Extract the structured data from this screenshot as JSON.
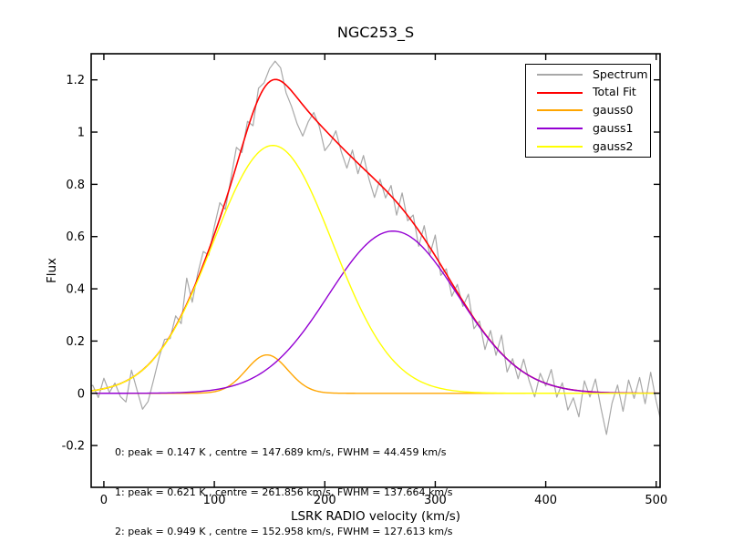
{
  "chart_data": {
    "type": "line",
    "title": "NGC253_S",
    "xlabel": "LSRK RADIO velocity (km/s)",
    "ylabel": "Flux",
    "xlim": [
      -11.5,
      503.5
    ],
    "ylim": [
      -0.36,
      1.3
    ],
    "xticks": {
      "values": [
        0,
        100,
        200,
        300,
        400,
        500
      ],
      "labels": [
        "0",
        "100",
        "200",
        "300",
        "400",
        "500"
      ]
    },
    "yticks": {
      "values": [
        -0.2,
        0,
        0.2,
        0.4,
        0.6,
        0.8,
        1,
        1.2
      ],
      "labels": [
        "-0.2",
        "0",
        "0.2",
        "0.4",
        "0.6",
        "0.8",
        "1",
        "1.2"
      ]
    },
    "grid": false,
    "axis_color": "#000000",
    "background": "#ffffff",
    "gaussians": [
      {
        "name": "gauss0",
        "peak": 0.147,
        "centre": 147.689,
        "fwhm": 44.459,
        "color": "#ffa500"
      },
      {
        "name": "gauss1",
        "peak": 0.621,
        "centre": 261.856,
        "fwhm": 137.664,
        "color": "#9400d3"
      },
      {
        "name": "gauss2",
        "peak": 0.949,
        "centre": 152.958,
        "fwhm": 127.613,
        "color": "#ffff00"
      }
    ],
    "total_fit": {
      "name": "Total Fit",
      "color": "#ff0000"
    },
    "spectrum": {
      "name": "Spectrum",
      "color": "#a8a8a8",
      "x_start": -15,
      "x_step": 5,
      "noise_about_fit": [
        0.015,
        0.02,
        -0.03,
        0.04,
        -0.02,
        0.01,
        -0.05,
        -0.08,
        0.03,
        -0.06,
        -0.15,
        -0.14,
        -0.08,
        -0.02,
        0.02,
        -0.01,
        0.04,
        -0.03,
        0.1,
        -0.04,
        0.02,
        0.05,
        -0.02,
        0.03,
        0.06,
        -0.03,
        0.02,
        0.07,
        -0.02,
        0.03,
        -0.05,
        0.04,
        0.02,
        0.05,
        0.07,
        0.05,
        -0.03,
        -0.06,
        -0.1,
        -0.12,
        -0.04,
        0.02,
        -0.01,
        -0.08,
        -0.03,
        0.04,
        -0.02,
        -0.06,
        0.03,
        -0.04,
        0.05,
        -0.02,
        -0.07,
        0.02,
        -0.03,
        0.04,
        -0.05,
        0.06,
        -0.02,
        0.03,
        -0.06,
        0.05,
        -0.03,
        0.08,
        -0.04,
        0.02,
        -0.05,
        0.03,
        -0.02,
        0.06,
        -0.04,
        0.02,
        -0.06,
        0.04,
        -0.03,
        0.07,
        -0.05,
        0.02,
        -0.04,
        0.05,
        -0.02,
        -0.07,
        0.03,
        -0.01,
        0.06,
        -0.04,
        0.02,
        -0.08,
        -0.03,
        -0.1,
        0.04,
        -0.02,
        0.05,
        -0.06,
        -0.16,
        -0.04,
        0.03,
        -0.07,
        0.05,
        -0.02,
        0.06,
        -0.04,
        0.08,
        -0.03,
        -0.12
      ]
    },
    "legend": {
      "position": "upper right",
      "entries": [
        {
          "label": "Spectrum",
          "color": "#a8a8a8"
        },
        {
          "label": "Total Fit",
          "color": "#ff0000"
        },
        {
          "label": "gauss0",
          "color": "#ffa500"
        },
        {
          "label": "gauss1",
          "color": "#9400d3"
        },
        {
          "label": "gauss2",
          "color": "#ffff00"
        }
      ]
    },
    "annotation": {
      "lines": [
        "0: peak = 0.147 K , centre = 147.689 km/s, FWHM = 44.459 km/s",
        "1: peak = 0.621 K , centre = 261.856 km/s, FWHM = 137.664 km/s",
        "2: peak = 0.949 K , centre = 152.958 km/s, FWHM = 127.613 km/s"
      ]
    }
  }
}
